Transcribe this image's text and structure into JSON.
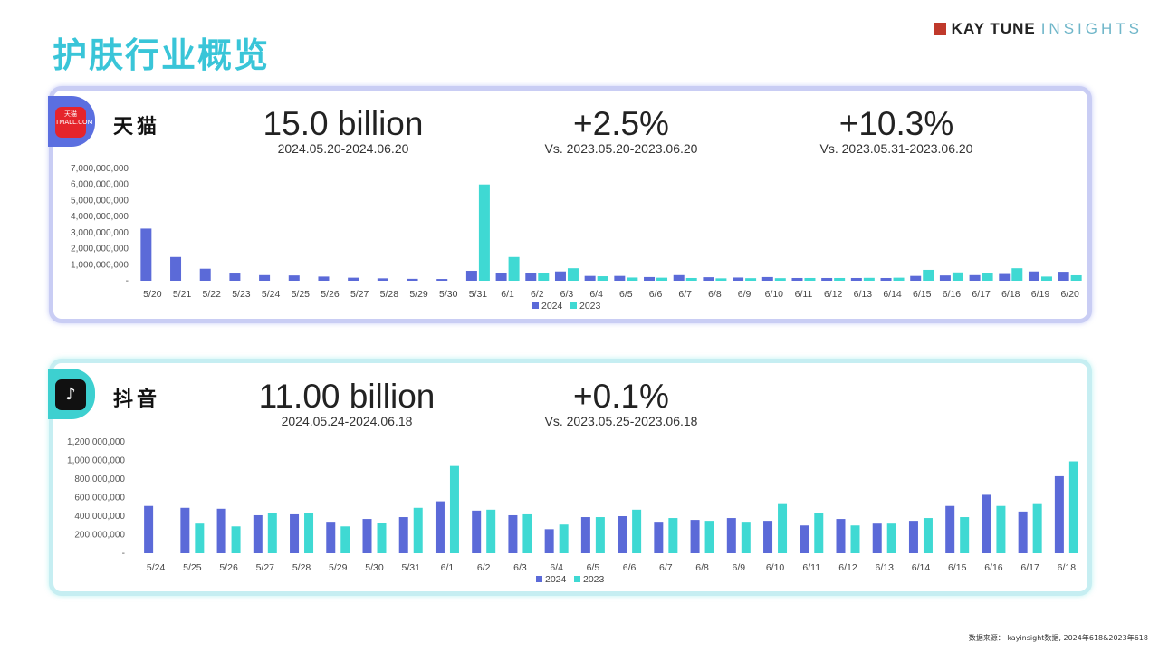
{
  "page": {
    "title": "护肤行业概览",
    "brand_name": "KAY TUNE",
    "brand_sub": "INSIGHTS",
    "source": "数据来源： kayinsight数据, 2024年618&2023年618"
  },
  "colors": {
    "s2024": "#5b6ad8",
    "s2023": "#3fd9d3",
    "title": "#39c5d8"
  },
  "tmall": {
    "platform": "天猫",
    "logo_text": "天猫 TMALL.COM",
    "metrics": [
      {
        "big": "15.0 billion",
        "small": "2024.05.20-2024.06.20"
      },
      {
        "big": "+2.5%",
        "small": "Vs. 2023.05.20-2023.06.20"
      },
      {
        "big": "+10.3%",
        "small": "Vs. 2023.05.31-2023.06.20"
      }
    ]
  },
  "douyin": {
    "platform": "抖音",
    "logo_text": "♪",
    "metrics": [
      {
        "big": "11.00 billion",
        "small": "2024.05.24-2024.06.18"
      },
      {
        "big": "+0.1%",
        "small": "Vs. 2023.05.25-2023.06.18"
      }
    ]
  },
  "chart_data": [
    {
      "type": "bar",
      "title": "天猫",
      "categories": [
        "5/20",
        "5/21",
        "5/22",
        "5/23",
        "5/24",
        "5/25",
        "5/26",
        "5/27",
        "5/28",
        "5/29",
        "5/30",
        "5/31",
        "6/1",
        "6/2",
        "6/3",
        "6/4",
        "6/5",
        "6/6",
        "6/7",
        "6/8",
        "6/9",
        "6/10",
        "6/11",
        "6/12",
        "6/13",
        "6/14",
        "6/15",
        "6/16",
        "6/17",
        "6/18",
        "6/19",
        "6/20"
      ],
      "series": [
        {
          "name": "2024",
          "values": [
            3250000000,
            1480000000,
            750000000,
            450000000,
            350000000,
            330000000,
            260000000,
            190000000,
            150000000,
            120000000,
            110000000,
            620000000,
            500000000,
            500000000,
            580000000,
            300000000,
            300000000,
            230000000,
            350000000,
            220000000,
            200000000,
            230000000,
            170000000,
            170000000,
            170000000,
            170000000,
            300000000,
            330000000,
            350000000,
            420000000,
            580000000,
            560000000
          ]
        },
        {
          "name": "2023",
          "values": [
            0,
            0,
            0,
            0,
            0,
            0,
            0,
            0,
            0,
            0,
            0,
            6000000000,
            1480000000,
            500000000,
            780000000,
            280000000,
            200000000,
            190000000,
            170000000,
            150000000,
            160000000,
            160000000,
            170000000,
            170000000,
            180000000,
            190000000,
            680000000,
            520000000,
            470000000,
            780000000,
            260000000,
            340000000
          ]
        }
      ],
      "yticks": [
        "-",
        "1,000,000,000",
        "2,000,000,000",
        "3,000,000,000",
        "4,000,000,000",
        "5,000,000,000",
        "6,000,000,000",
        "7,000,000,000"
      ],
      "ylim": [
        0,
        7000000000
      ],
      "legend": [
        "2024",
        "2023"
      ],
      "xlabel": "",
      "ylabel": ""
    },
    {
      "type": "bar",
      "title": "抖音",
      "categories": [
        "5/24",
        "5/25",
        "5/26",
        "5/27",
        "5/28",
        "5/29",
        "5/30",
        "5/31",
        "6/1",
        "6/2",
        "6/3",
        "6/4",
        "6/5",
        "6/6",
        "6/7",
        "6/8",
        "6/9",
        "6/10",
        "6/11",
        "6/12",
        "6/13",
        "6/14",
        "6/15",
        "6/16",
        "6/17",
        "6/18"
      ],
      "series": [
        {
          "name": "2024",
          "values": [
            510000000,
            490000000,
            480000000,
            410000000,
            420000000,
            340000000,
            370000000,
            390000000,
            560000000,
            460000000,
            410000000,
            260000000,
            390000000,
            400000000,
            340000000,
            360000000,
            380000000,
            350000000,
            300000000,
            370000000,
            320000000,
            350000000,
            510000000,
            630000000,
            450000000,
            830000000
          ]
        },
        {
          "name": "2023",
          "values": [
            0,
            320000000,
            290000000,
            430000000,
            430000000,
            290000000,
            330000000,
            490000000,
            940000000,
            470000000,
            420000000,
            310000000,
            390000000,
            470000000,
            380000000,
            350000000,
            340000000,
            530000000,
            430000000,
            300000000,
            320000000,
            380000000,
            390000000,
            510000000,
            530000000,
            990000000
          ]
        }
      ],
      "yticks": [
        "-",
        "200,000,000",
        "400,000,000",
        "600,000,000",
        "800,000,000",
        "1,000,000,000",
        "1,200,000,000"
      ],
      "ylim": [
        0,
        1200000000
      ],
      "legend": [
        "2024",
        "2023"
      ],
      "xlabel": "",
      "ylabel": ""
    }
  ]
}
